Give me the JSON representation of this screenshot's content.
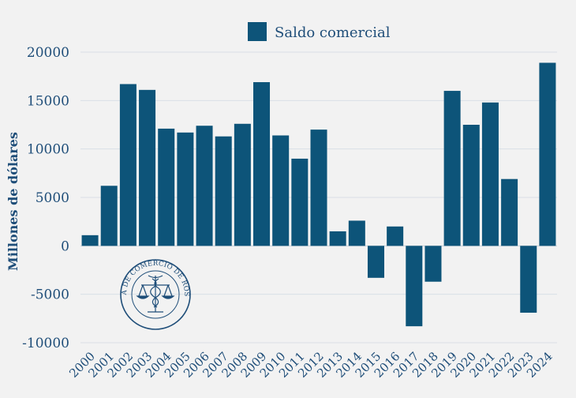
{
  "chart_data": {
    "type": "bar",
    "title": "",
    "xlabel": "",
    "ylabel": "Millones de dólares",
    "legend": {
      "label": "Saldo comercial",
      "position": "top-center"
    },
    "ylim": [
      -10000,
      20000
    ],
    "yticks": [
      20000,
      15000,
      10000,
      5000,
      0,
      -5000,
      -10000
    ],
    "ytick_labels": [
      "20000",
      "15000",
      "10000",
      "5000",
      "0",
      "-5000",
      "-10000"
    ],
    "grid": true,
    "bar_color": "#0d5479",
    "categories": [
      "2000",
      "2001",
      "2002",
      "2003",
      "2004",
      "2005",
      "2006",
      "2007",
      "2008",
      "2009",
      "2010",
      "2011",
      "2012",
      "2013",
      "2014",
      "2015",
      "2016",
      "2017",
      "2018",
      "2019",
      "2020",
      "2021",
      "2022",
      "2023",
      "2024"
    ],
    "series": [
      {
        "name": "Saldo comercial",
        "values": [
          1100,
          6200,
          16700,
          16100,
          12100,
          11700,
          12400,
          11300,
          12600,
          16900,
          11400,
          9000,
          12000,
          1500,
          2600,
          -3300,
          2000,
          -8300,
          -3700,
          16000,
          12500,
          14800,
          6900,
          -6900,
          18900
        ]
      }
    ]
  },
  "watermark": {
    "text": "BOLSA DE COMERCIO DE ROSARIO",
    "icon": "caduceus-scales-icon"
  }
}
